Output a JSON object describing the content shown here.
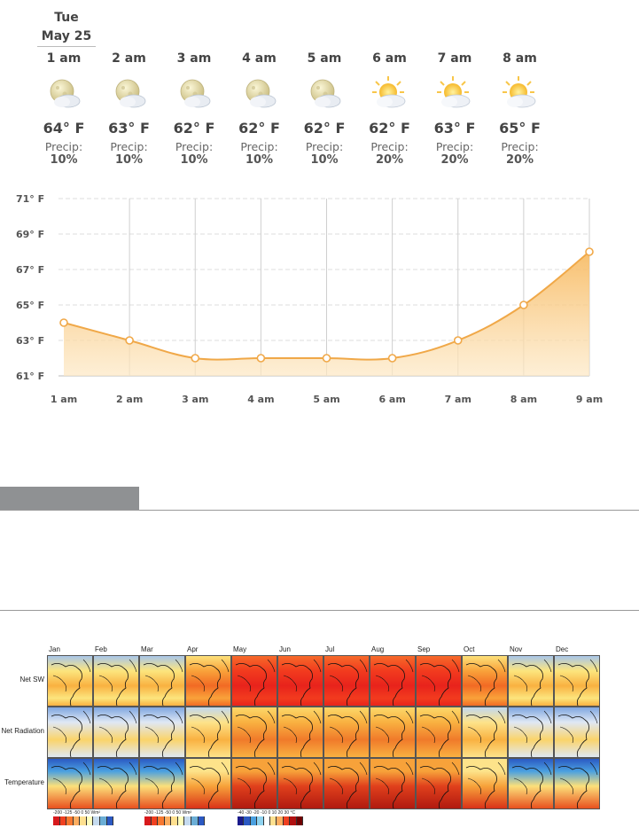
{
  "day": {
    "weekday": "Tue",
    "date": "May 25"
  },
  "hourly": [
    {
      "time": "1 am",
      "icon": "moon-cloud-icon",
      "temp": "64° F",
      "precip_label": "Precip:",
      "precip": "10%"
    },
    {
      "time": "2 am",
      "icon": "moon-cloud-icon",
      "temp": "63° F",
      "precip_label": "Precip:",
      "precip": "10%"
    },
    {
      "time": "3 am",
      "icon": "moon-cloud-icon",
      "temp": "62° F",
      "precip_label": "Precip:",
      "precip": "10%"
    },
    {
      "time": "4 am",
      "icon": "moon-cloud-icon",
      "temp": "62° F",
      "precip_label": "Precip:",
      "precip": "10%"
    },
    {
      "time": "5 am",
      "icon": "moon-cloud-icon",
      "temp": "62° F",
      "precip_label": "Precip:",
      "precip": "10%"
    },
    {
      "time": "6 am",
      "icon": "sun-cloud-icon",
      "temp": "62° F",
      "precip_label": "Precip:",
      "precip": "20%"
    },
    {
      "time": "7 am",
      "icon": "sun-cloud-icon",
      "temp": "63° F",
      "precip_label": "Precip:",
      "precip": "20%"
    },
    {
      "time": "8 am",
      "icon": "sun-cloud-icon",
      "temp": "65° F",
      "precip_label": "Precip:",
      "precip": "20%"
    }
  ],
  "chart_data": {
    "type": "area",
    "x": [
      "1 am",
      "2 am",
      "3 am",
      "4 am",
      "5 am",
      "6 am",
      "7 am",
      "8 am",
      "9 am"
    ],
    "values": [
      64,
      63,
      62,
      62,
      62,
      62,
      63,
      65,
      68
    ],
    "y_ticks": [
      "71° F",
      "69° F",
      "67° F",
      "65° F",
      "63° F",
      "61° F"
    ],
    "ylim": [
      61,
      71
    ],
    "grid": true,
    "colors": {
      "line": "#f0a848",
      "fill_top": "#f7b95f",
      "fill_bottom": "#fde8c4"
    }
  },
  "maps": {
    "months": [
      "Jan",
      "Feb",
      "Mar",
      "Apr",
      "May",
      "Jun",
      "Jul",
      "Aug",
      "Sep",
      "Oct",
      "Nov",
      "Dec"
    ],
    "rows": [
      "Net SW",
      "Net Radiation",
      "Temperature"
    ],
    "scales": [
      {
        "labels": "-200 -125  -50    0    50   Wm²",
        "colors": [
          "#d7191c",
          "#f04020",
          "#f87830",
          "#fdae61",
          "#fee090",
          "#ffffbf",
          "#c6dbef",
          "#6baed6",
          "#2b59c3"
        ]
      },
      {
        "labels": "-200 -125  -50    0    50   Wm²",
        "colors": [
          "#d7191c",
          "#f04020",
          "#f87830",
          "#fdae61",
          "#fee090",
          "#ffffbf",
          "#c6dbef",
          "#6baed6",
          "#2b59c3"
        ]
      },
      {
        "labels": "-40 -30 -20 -10  0  10  20  30  °C",
        "colors": [
          "#1a1a8c",
          "#2b59c3",
          "#4aa0e0",
          "#8fd3f0",
          "#ffffff",
          "#fee090",
          "#fdae61",
          "#f04020",
          "#b01010",
          "#700000"
        ]
      }
    ]
  }
}
